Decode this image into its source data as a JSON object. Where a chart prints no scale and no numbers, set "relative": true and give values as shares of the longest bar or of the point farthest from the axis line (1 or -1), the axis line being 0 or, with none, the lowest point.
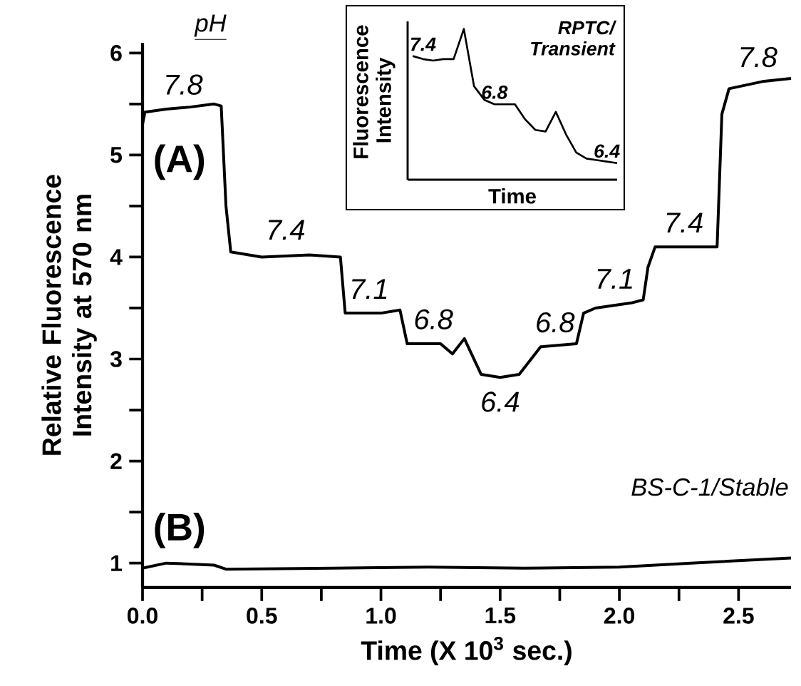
{
  "chart_data": [
    {
      "type": "line",
      "xlabel": "Time (X 10$^{3}$ sec.)",
      "ylabel": "Relative Fluorescence Intensity at 570 nm",
      "xlim": [
        0,
        2.72
      ],
      "ylim": [
        0.76,
        6.1
      ],
      "xticks": [
        {
          "value": 0,
          "label": "0.0"
        },
        {
          "value": 0.25,
          "label": null
        },
        {
          "value": 0.5,
          "label": "0.5"
        },
        {
          "value": 0.75,
          "label": null
        },
        {
          "value": 1,
          "label": "1.0"
        },
        {
          "value": 1.25,
          "label": null
        },
        {
          "value": 1.5,
          "label": "1.5"
        },
        {
          "value": 1.75,
          "label": null
        },
        {
          "value": 2,
          "label": "2.0"
        },
        {
          "value": 2.25,
          "label": null
        },
        {
          "value": 2.5,
          "label": "2.5"
        }
      ],
      "yticks": [
        1,
        {
          "value": 1.5,
          "label": null
        },
        2,
        {
          "value": 2.5,
          "label": null
        },
        3,
        {
          "value": 3.5,
          "label": null
        },
        4,
        {
          "value": 4.5,
          "label": null
        },
        5,
        {
          "value": 5.5,
          "label": null
        },
        6
      ],
      "marker": "none",
      "line_style": "solid",
      "series": [
        {
          "name": "(A)",
          "color": "#000000",
          "x": [
            0,
            0.01,
            0.1,
            0.2,
            0.3,
            0.33,
            0.35,
            0.37,
            0.5,
            0.7,
            0.83,
            0.85,
            1.0,
            1.08,
            1.11,
            1.25,
            1.3,
            1.35,
            1.38,
            1.42,
            1.5,
            1.58,
            1.63,
            1.67,
            1.82,
            1.85,
            1.9,
            2.05,
            2.1,
            2.12,
            2.15,
            2.3,
            2.41,
            2.43,
            2.46,
            2.6,
            2.72
          ],
          "values": [
            5.3,
            5.42,
            5.45,
            5.47,
            5.5,
            5.48,
            4.5,
            4.05,
            4.0,
            4.02,
            4.0,
            3.45,
            3.45,
            3.48,
            3.15,
            3.15,
            3.05,
            3.2,
            3.05,
            2.85,
            2.82,
            2.85,
            3.0,
            3.12,
            3.15,
            3.45,
            3.5,
            3.55,
            3.58,
            3.9,
            4.1,
            4.1,
            4.1,
            5.4,
            5.65,
            5.72,
            5.75
          ]
        },
        {
          "name": "(B)",
          "color": "#000000",
          "x": [
            0,
            0.1,
            0.3,
            0.35,
            0.8,
            1.2,
            1.6,
            2.0,
            2.3,
            2.72
          ],
          "values": [
            0.95,
            1.0,
            0.98,
            0.94,
            0.95,
            0.96,
            0.95,
            0.96,
            1.0,
            1.05
          ]
        }
      ],
      "annotations": [
        "pH",
        "BS-C-1/Stable",
        {
          "text": "7.8",
          "x": 0.17,
          "y": 5.45
        },
        {
          "text": "7.4",
          "x": 0.6,
          "y": 4.03
        },
        {
          "text": "7.1",
          "x": 0.95,
          "y": 3.45
        },
        {
          "text": "6.8",
          "x": 1.22,
          "y": 3.15
        },
        {
          "text": "6.4",
          "x": 1.5,
          "y": 2.82
        },
        {
          "text": "6.8",
          "x": 1.73,
          "y": 3.12
        },
        {
          "text": "7.1",
          "x": 1.98,
          "y": 3.55
        },
        {
          "text": "7.4",
          "x": 2.27,
          "y": 4.1
        },
        {
          "text": "7.8",
          "x": 2.58,
          "y": 5.72
        }
      ]
    },
    {
      "type": "line",
      "relative": true,
      "title": "RPTC/ Transient",
      "xlabel": "Time",
      "ylabel": "Fluorescence Intensity",
      "marker": "none",
      "categories": [
        null,
        null,
        null,
        null,
        null,
        null,
        null,
        null,
        null,
        null,
        null,
        null,
        null,
        null,
        null,
        null,
        null,
        null,
        null,
        null,
        null
      ],
      "series": [
        {
          "color": "#000000",
          "values": [
            0.82,
            0.8,
            0.79,
            0.8,
            0.8,
            1.0,
            0.62,
            0.53,
            0.5,
            0.5,
            0.5,
            0.4,
            0.33,
            0.32,
            0.45,
            0.3,
            0.18,
            0.14,
            0.13,
            0.12,
            0.11
          ]
        }
      ],
      "annotations": [
        "7.4",
        "6.8",
        "6.4"
      ]
    }
  ]
}
